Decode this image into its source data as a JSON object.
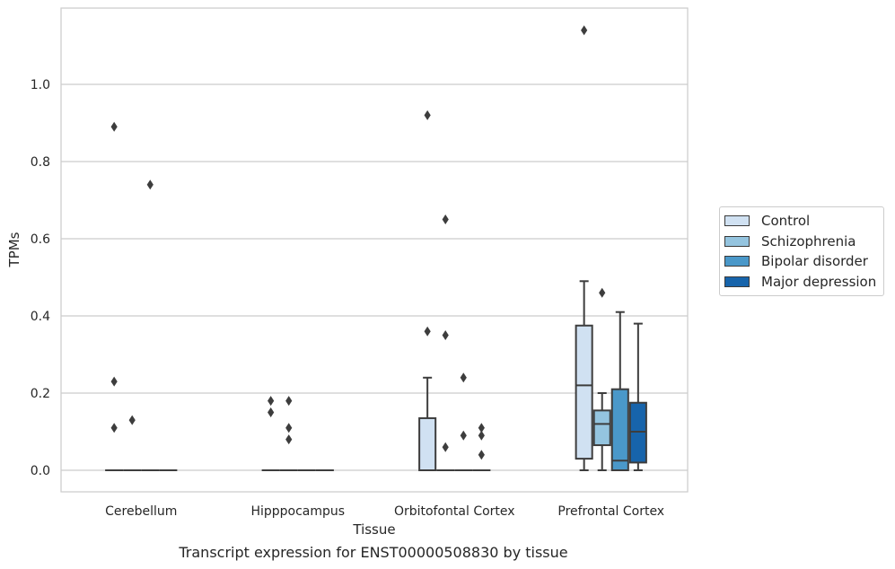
{
  "chart_data": {
    "type": "box",
    "caption": "Transcript expression for ENST00000508830 by tissue",
    "xlabel": "Tissue",
    "ylabel": "TPMs",
    "ylim": [
      -0.055,
      1.2
    ],
    "yticks": [
      0.0,
      0.2,
      0.4,
      0.6,
      0.8,
      1.0
    ],
    "ytick_labels": [
      "0.0",
      "0.2",
      "0.4",
      "0.6",
      "0.8",
      "1.0"
    ],
    "categories": [
      "Cerebellum",
      "Hipppocampus",
      "Orbitofontal Cortex",
      "Prefrontal Cortex"
    ],
    "grid": "horizontal",
    "legend_position": "right",
    "series": [
      {
        "name": "Control",
        "color": "#d0e1f2",
        "boxes": [
          {
            "q1": 0,
            "median": 0,
            "q3": 0,
            "whisker_low": 0,
            "whisker_high": 0,
            "outliers": [
              0.89,
              0.23,
              0.11
            ]
          },
          {
            "q1": 0,
            "median": 0,
            "q3": 0,
            "whisker_low": 0,
            "whisker_high": 0,
            "outliers": [
              0.18,
              0.15
            ]
          },
          {
            "q1": 0,
            "median": 0,
            "q3": 0.135,
            "whisker_low": 0,
            "whisker_high": 0.24,
            "outliers": [
              0.92,
              0.36
            ]
          },
          {
            "q1": 0.03,
            "median": 0.22,
            "q3": 0.375,
            "whisker_low": 0,
            "whisker_high": 0.49,
            "outliers": [
              1.14
            ]
          }
        ]
      },
      {
        "name": "Schizophrenia",
        "color": "#94c4df",
        "boxes": [
          {
            "q1": 0,
            "median": 0,
            "q3": 0,
            "whisker_low": 0,
            "whisker_high": 0,
            "outliers": [
              0.13
            ]
          },
          {
            "q1": 0,
            "median": 0,
            "q3": 0,
            "whisker_low": 0,
            "whisker_high": 0,
            "outliers": [
              0.18,
              0.11,
              0.08
            ]
          },
          {
            "q1": 0,
            "median": 0,
            "q3": 0,
            "whisker_low": 0,
            "whisker_high": 0,
            "outliers": [
              0.65,
              0.35,
              0.06
            ]
          },
          {
            "q1": 0.065,
            "median": 0.12,
            "q3": 0.155,
            "whisker_low": 0,
            "whisker_high": 0.2,
            "outliers": [
              0.46
            ]
          }
        ]
      },
      {
        "name": "Bipolar disorder",
        "color": "#4a98c9",
        "boxes": [
          {
            "q1": 0,
            "median": 0,
            "q3": 0,
            "whisker_low": 0,
            "whisker_high": 0,
            "outliers": [
              0.74
            ]
          },
          {
            "q1": 0,
            "median": 0,
            "q3": 0,
            "whisker_low": 0,
            "whisker_high": 0,
            "outliers": []
          },
          {
            "q1": 0,
            "median": 0,
            "q3": 0,
            "whisker_low": 0,
            "whisker_high": 0,
            "outliers": [
              0.24,
              0.09
            ]
          },
          {
            "q1": 0,
            "median": 0.025,
            "q3": 0.21,
            "whisker_low": 0,
            "whisker_high": 0.41,
            "outliers": []
          }
        ]
      },
      {
        "name": "Major depression",
        "color": "#1764ab",
        "boxes": [
          {
            "q1": 0,
            "median": 0,
            "q3": 0,
            "whisker_low": 0,
            "whisker_high": 0,
            "outliers": []
          },
          {
            "q1": 0,
            "median": 0,
            "q3": 0,
            "whisker_low": 0,
            "whisker_high": 0,
            "outliers": []
          },
          {
            "q1": 0,
            "median": 0,
            "q3": 0,
            "whisker_low": 0,
            "whisker_high": 0,
            "outliers": [
              0.11,
              0.09,
              0.04
            ]
          },
          {
            "q1": 0.02,
            "median": 0.1,
            "q3": 0.175,
            "whisker_low": 0,
            "whisker_high": 0.38,
            "outliers": []
          }
        ]
      }
    ]
  }
}
